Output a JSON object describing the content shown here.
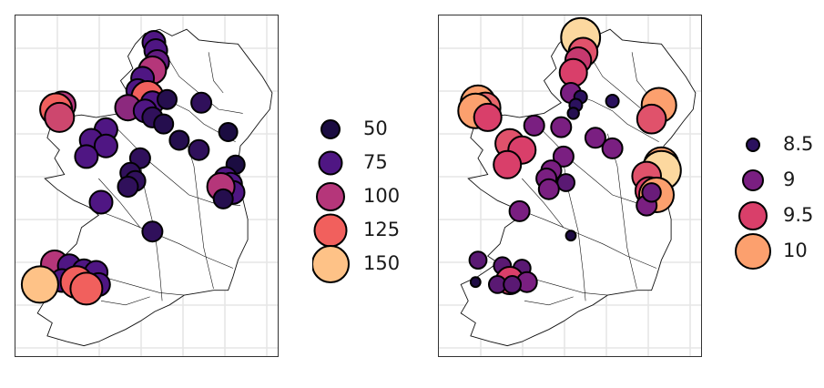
{
  "colors": {
    "panel_border": "#333333",
    "grid": "#e6e6e6",
    "outline": "#111111",
    "point_border": "#000000"
  },
  "maps": [
    {
      "id": "left",
      "legend": {
        "entries": [
          {
            "label": "50",
            "color": "#1b0c41"
          },
          {
            "label": "75",
            "color": "#4f1683"
          },
          {
            "label": "100",
            "color": "#b5367a"
          },
          {
            "label": "125",
            "color": "#f1605d"
          },
          {
            "label": "150",
            "color": "#fec287"
          }
        ]
      },
      "points": [
        {
          "lon": -7.92,
          "lat": 55.22,
          "value": 75
        },
        {
          "lon": -7.88,
          "lat": 55.12,
          "value": 75
        },
        {
          "lon": -7.85,
          "lat": 54.98,
          "value": 80
        },
        {
          "lon": -7.95,
          "lat": 54.88,
          "value": 100
        },
        {
          "lon": -8.15,
          "lat": 54.78,
          "value": 75
        },
        {
          "lon": -8.25,
          "lat": 54.63,
          "value": 75
        },
        {
          "lon": -8.05,
          "lat": 54.55,
          "value": 125
        },
        {
          "lon": -7.95,
          "lat": 54.48,
          "value": 75
        },
        {
          "lon": -7.65,
          "lat": 54.52,
          "value": 55
        },
        {
          "lon": -6.95,
          "lat": 54.48,
          "value": 60
        },
        {
          "lon": -9.8,
          "lat": 54.45,
          "value": 100
        },
        {
          "lon": -9.92,
          "lat": 54.4,
          "value": 125
        },
        {
          "lon": -9.85,
          "lat": 54.3,
          "value": 110
        },
        {
          "lon": -8.45,
          "lat": 54.42,
          "value": 90
        },
        {
          "lon": -8.1,
          "lat": 54.38,
          "value": 75
        },
        {
          "lon": -7.95,
          "lat": 54.3,
          "value": 60
        },
        {
          "lon": -7.72,
          "lat": 54.22,
          "value": 55
        },
        {
          "lon": -8.9,
          "lat": 54.15,
          "value": 75
        },
        {
          "lon": -9.2,
          "lat": 54.02,
          "value": 75
        },
        {
          "lon": -8.9,
          "lat": 53.95,
          "value": 75
        },
        {
          "lon": -7.4,
          "lat": 54.02,
          "value": 55
        },
        {
          "lon": -6.4,
          "lat": 54.12,
          "value": 50
        },
        {
          "lon": -7.0,
          "lat": 53.9,
          "value": 60
        },
        {
          "lon": -9.3,
          "lat": 53.82,
          "value": 75
        },
        {
          "lon": -8.2,
          "lat": 53.8,
          "value": 60
        },
        {
          "lon": -6.25,
          "lat": 53.72,
          "value": 50
        },
        {
          "lon": -8.4,
          "lat": 53.62,
          "value": 60
        },
        {
          "lon": -8.3,
          "lat": 53.52,
          "value": 60
        },
        {
          "lon": -8.45,
          "lat": 53.45,
          "value": 60
        },
        {
          "lon": -6.45,
          "lat": 53.55,
          "value": 75
        },
        {
          "lon": -6.35,
          "lat": 53.48,
          "value": 75
        },
        {
          "lon": -6.3,
          "lat": 53.38,
          "value": 75
        },
        {
          "lon": -6.55,
          "lat": 53.45,
          "value": 100
        },
        {
          "lon": -6.5,
          "lat": 53.3,
          "value": 55
        },
        {
          "lon": -9.0,
          "lat": 53.26,
          "value": 75
        },
        {
          "lon": -7.95,
          "lat": 52.9,
          "value": 60
        },
        {
          "lon": -9.95,
          "lat": 52.5,
          "value": 100
        },
        {
          "lon": -9.65,
          "lat": 52.48,
          "value": 75
        },
        {
          "lon": -9.35,
          "lat": 52.42,
          "value": 75
        },
        {
          "lon": -9.1,
          "lat": 52.4,
          "value": 75
        },
        {
          "lon": -9.8,
          "lat": 52.3,
          "value": 75
        },
        {
          "lon": -9.5,
          "lat": 52.28,
          "value": 125
        },
        {
          "lon": -10.25,
          "lat": 52.25,
          "value": 150
        },
        {
          "lon": -9.05,
          "lat": 52.25,
          "value": 75
        },
        {
          "lon": -9.3,
          "lat": 52.2,
          "value": 125
        }
      ]
    },
    {
      "id": "right",
      "legend": {
        "entries": [
          {
            "label": "8.5",
            "color": "#2b115e"
          },
          {
            "label": "9",
            "color": "#7a1f81"
          },
          {
            "label": "9.5",
            "color": "#d93f6a"
          },
          {
            "label": "10",
            "color": "#fca06e"
          }
        ]
      },
      "points": [
        {
          "lon": -7.85,
          "lat": 55.28,
          "value": 10.3
        },
        {
          "lon": -7.8,
          "lat": 55.1,
          "value": 9.6
        },
        {
          "lon": -7.9,
          "lat": 55.0,
          "value": 9.4
        },
        {
          "lon": -7.95,
          "lat": 54.92,
          "value": 8.6
        },
        {
          "lon": -8.0,
          "lat": 54.85,
          "value": 9.5
        },
        {
          "lon": -8.05,
          "lat": 54.6,
          "value": 9.0
        },
        {
          "lon": -7.85,
          "lat": 54.55,
          "value": 8.5
        },
        {
          "lon": -7.95,
          "lat": 54.45,
          "value": 8.5
        },
        {
          "lon": -8.0,
          "lat": 54.35,
          "value": 8.4
        },
        {
          "lon": -7.2,
          "lat": 54.5,
          "value": 8.5
        },
        {
          "lon": -6.25,
          "lat": 54.45,
          "value": 10.0
        },
        {
          "lon": -6.4,
          "lat": 54.28,
          "value": 9.6
        },
        {
          "lon": -9.95,
          "lat": 54.48,
          "value": 10.0
        },
        {
          "lon": -9.8,
          "lat": 54.42,
          "value": 9.7
        },
        {
          "lon": -10.0,
          "lat": 54.38,
          "value": 10.0
        },
        {
          "lon": -9.75,
          "lat": 54.3,
          "value": 9.5
        },
        {
          "lon": -8.8,
          "lat": 54.2,
          "value": 9.0
        },
        {
          "lon": -8.25,
          "lat": 54.18,
          "value": 9.0
        },
        {
          "lon": -7.55,
          "lat": 54.05,
          "value": 9.0
        },
        {
          "lon": -7.2,
          "lat": 53.92,
          "value": 9.0
        },
        {
          "lon": -9.3,
          "lat": 53.98,
          "value": 9.6
        },
        {
          "lon": -9.05,
          "lat": 53.9,
          "value": 9.5
        },
        {
          "lon": -9.35,
          "lat": 53.72,
          "value": 9.5
        },
        {
          "lon": -8.2,
          "lat": 53.82,
          "value": 9.0
        },
        {
          "lon": -8.45,
          "lat": 53.65,
          "value": 9.0
        },
        {
          "lon": -8.15,
          "lat": 53.5,
          "value": 8.8
        },
        {
          "lon": -8.55,
          "lat": 53.55,
          "value": 9.0
        },
        {
          "lon": -8.5,
          "lat": 53.42,
          "value": 9.0
        },
        {
          "lon": -6.2,
          "lat": 53.72,
          "value": 10.0
        },
        {
          "lon": -6.2,
          "lat": 53.65,
          "value": 10.3
        },
        {
          "lon": -6.5,
          "lat": 53.58,
          "value": 9.6
        },
        {
          "lon": -6.45,
          "lat": 53.4,
          "value": 9.5
        },
        {
          "lon": -6.3,
          "lat": 53.35,
          "value": 10.0
        },
        {
          "lon": -6.5,
          "lat": 53.22,
          "value": 9.0
        },
        {
          "lon": -6.4,
          "lat": 53.38,
          "value": 8.9
        },
        {
          "lon": -9.1,
          "lat": 53.15,
          "value": 9.0
        },
        {
          "lon": -8.05,
          "lat": 52.85,
          "value": 8.3
        },
        {
          "lon": -9.95,
          "lat": 52.55,
          "value": 8.8
        },
        {
          "lon": -9.45,
          "lat": 52.48,
          "value": 8.8
        },
        {
          "lon": -9.05,
          "lat": 52.45,
          "value": 8.8
        },
        {
          "lon": -10.0,
          "lat": 52.28,
          "value": 8.3
        },
        {
          "lon": -9.6,
          "lat": 52.28,
          "value": 8.3
        },
        {
          "lon": -9.3,
          "lat": 52.3,
          "value": 9.5
        },
        {
          "lon": -9.55,
          "lat": 52.25,
          "value": 8.8
        },
        {
          "lon": -8.95,
          "lat": 52.28,
          "value": 9.0
        },
        {
          "lon": -9.25,
          "lat": 52.25,
          "value": 8.8
        }
      ]
    }
  ]
}
